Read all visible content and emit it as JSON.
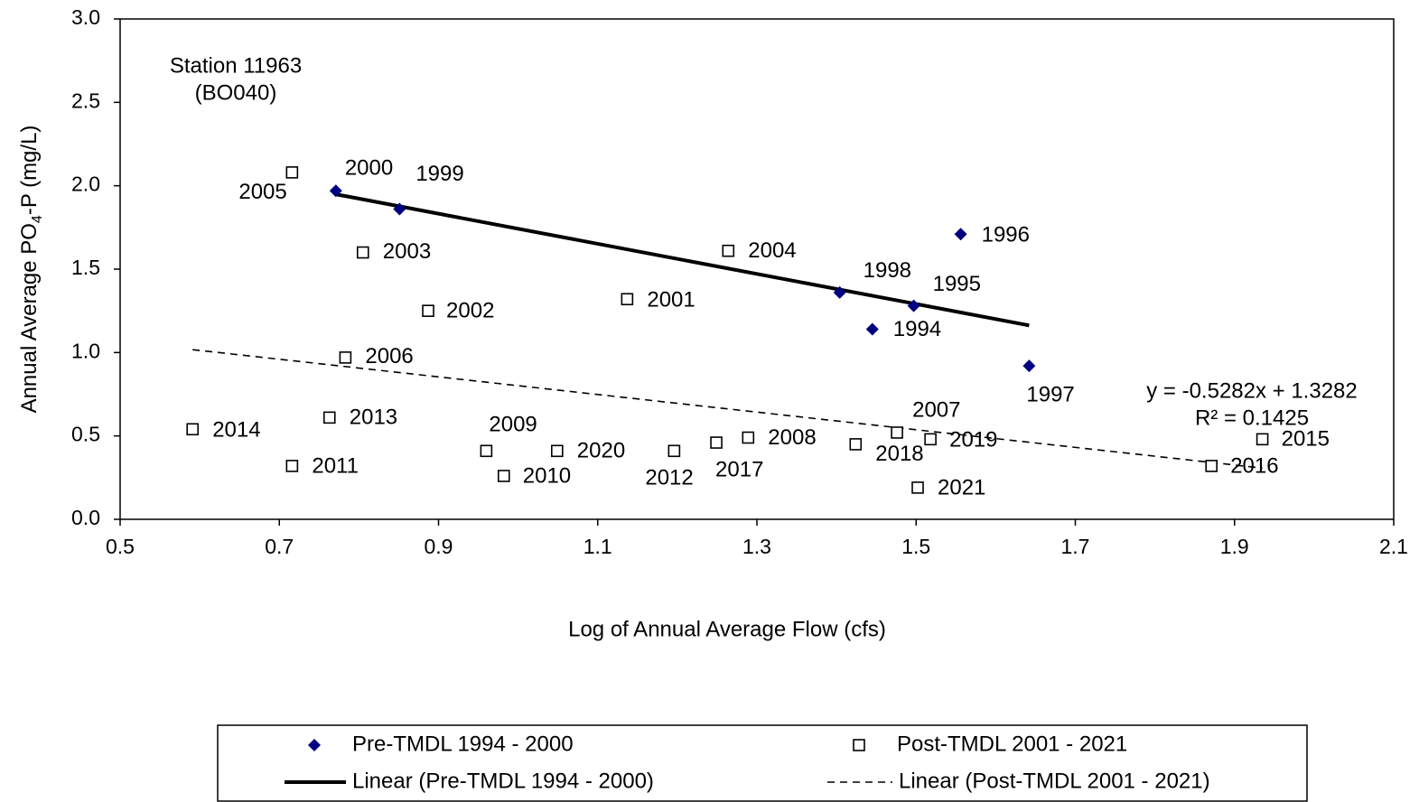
{
  "chart_data": {
    "type": "scatter",
    "ylabel": [
      "Annual Average PO",
      "4",
      "-P (mg/L)"
    ],
    "xlabel": "Log of Annual Average Flow (cfs)",
    "annotation": [
      "Station 11963",
      "(BO040)"
    ],
    "xlim": [
      0.5,
      2.1
    ],
    "xticks": [
      0.5,
      0.7,
      0.9,
      1.1,
      1.3,
      1.5,
      1.7,
      1.9,
      2.1
    ],
    "ylim": [
      0,
      3
    ],
    "yticks": [
      {
        "value": 0,
        "label": "0.0"
      },
      0.5,
      {
        "value": 1,
        "label": "1.0"
      },
      1.5,
      {
        "value": 2,
        "label": "2.0"
      },
      2.5,
      {
        "value": 3,
        "label": "3.0"
      }
    ],
    "series": [
      {
        "name": "Pre-TMDL 1994 - 2000",
        "color": "#000080",
        "marker": "diamond",
        "x": [
          0.771,
          0.851,
          1.404,
          1.497,
          1.556,
          1.445,
          1.642
        ],
        "values": [
          1.97,
          1.86,
          1.36,
          1.28,
          1.71,
          1.14,
          0.92
        ],
        "labels": [
          "2000",
          "1999",
          "1998",
          "1995",
          "1996",
          "1994",
          "1997"
        ],
        "trendline": {
          "name": "Linear (Pre-TMDL 1994 - 2000)",
          "style": "solid"
        }
      },
      {
        "name": "Post-TMDL 2001 - 2021",
        "color": "#000000",
        "marker": "square",
        "x": [
          0.716,
          0.805,
          0.887,
          1.137,
          1.264,
          0.783,
          0.591,
          0.763,
          0.716,
          0.96,
          0.982,
          1.049,
          1.196,
          1.249,
          1.289,
          1.424,
          1.476,
          1.518,
          1.502,
          1.871,
          1.935
        ],
        "values": [
          2.08,
          1.6,
          1.25,
          1.32,
          1.61,
          0.97,
          0.54,
          0.61,
          0.32,
          0.41,
          0.26,
          0.41,
          0.41,
          0.46,
          0.49,
          0.45,
          0.52,
          0.48,
          0.19,
          0.32,
          0.48
        ],
        "labels": [
          "2005",
          "2003",
          "2002",
          "2001",
          "2004",
          "2006",
          "2014",
          "2013",
          "2011",
          "2009",
          "2010",
          "2020",
          "2012",
          "2017",
          "2008",
          "2018",
          "2007",
          "2019",
          "2021",
          "2016",
          "2015"
        ],
        "trendline": {
          "name": "Linear (Post-TMDL 2001 - 2021)",
          "style": "dashed",
          "equation": "y = -0.5282x + 1.3282",
          "r2": "R² = 0.1425"
        }
      }
    ]
  }
}
